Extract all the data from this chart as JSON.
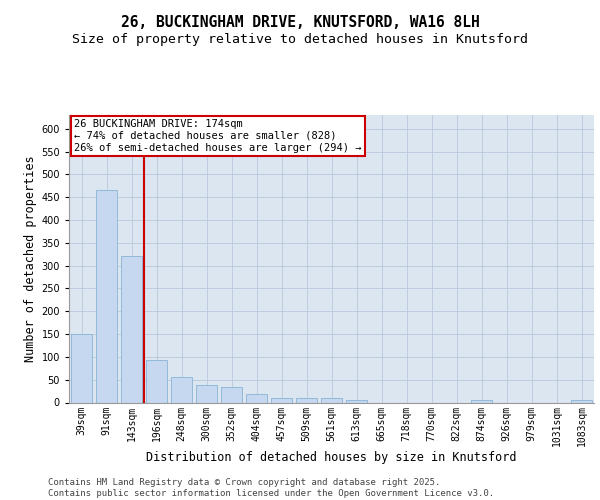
{
  "title_line1": "26, BUCKINGHAM DRIVE, KNUTSFORD, WA16 8LH",
  "title_line2": "Size of property relative to detached houses in Knutsford",
  "xlabel": "Distribution of detached houses by size in Knutsford",
  "ylabel": "Number of detached properties",
  "categories": [
    "39sqm",
    "91sqm",
    "143sqm",
    "196sqm",
    "248sqm",
    "300sqm",
    "352sqm",
    "404sqm",
    "457sqm",
    "509sqm",
    "561sqm",
    "613sqm",
    "665sqm",
    "718sqm",
    "770sqm",
    "822sqm",
    "874sqm",
    "926sqm",
    "979sqm",
    "1031sqm",
    "1083sqm"
  ],
  "values": [
    150,
    465,
    320,
    93,
    55,
    38,
    35,
    18,
    10,
    10,
    10,
    5,
    0,
    0,
    0,
    0,
    5,
    0,
    0,
    0,
    5
  ],
  "bar_color": "#c5d8f0",
  "bar_edge_color": "#8ab4d4",
  "grid_color": "#b8c8dc",
  "background_color": "#dce6f0",
  "vline_color": "#cc0000",
  "annotation_text": "26 BUCKINGHAM DRIVE: 174sqm\n← 74% of detached houses are smaller (828)\n26% of semi-detached houses are larger (294) →",
  "annotation_box_color": "#ffffff",
  "annotation_edge_color": "#cc0000",
  "footer_text": "Contains HM Land Registry data © Crown copyright and database right 2025.\nContains public sector information licensed under the Open Government Licence v3.0.",
  "ylim": [
    0,
    630
  ],
  "yticks": [
    0,
    50,
    100,
    150,
    200,
    250,
    300,
    350,
    400,
    450,
    500,
    550,
    600
  ],
  "title_fontsize": 10.5,
  "subtitle_fontsize": 9.5,
  "axis_label_fontsize": 8.5,
  "tick_fontsize": 7,
  "annotation_fontsize": 7.5,
  "footer_fontsize": 6.5
}
